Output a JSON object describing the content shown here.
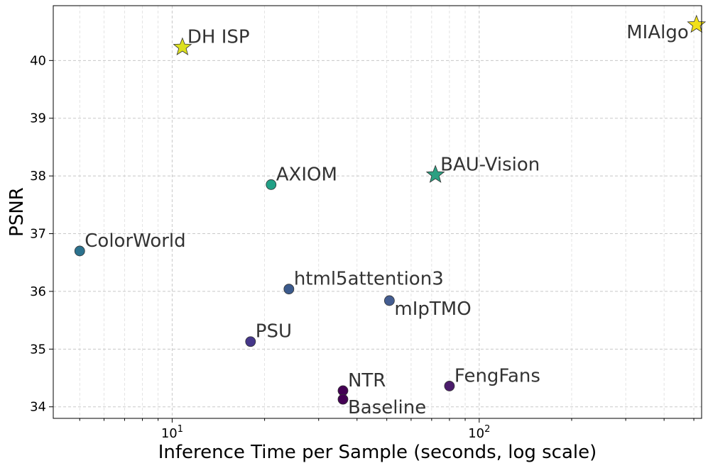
{
  "chart_data": {
    "type": "scatter",
    "xlabel": "Inference Time per Sample (seconds, log scale)",
    "ylabel": "PSNR",
    "x_scale": "log",
    "xlim": [
      4.1,
      530
    ],
    "ylim": [
      33.8,
      40.95
    ],
    "x_ticks": [
      {
        "value": 10,
        "base": "10",
        "exp": "1"
      },
      {
        "value": 100,
        "base": "10",
        "exp": "2"
      }
    ],
    "y_ticks": [
      34,
      35,
      36,
      37,
      38,
      39,
      40
    ],
    "grid": true,
    "colormap": "viridis",
    "points": [
      {
        "name": "MIAlgo",
        "x": 510,
        "y": 40.62,
        "marker": "star",
        "color": "#f2e01b",
        "label_pos": "left"
      },
      {
        "name": "DH ISP",
        "x": 10.8,
        "y": 40.23,
        "marker": "star",
        "color": "#dce01f",
        "label_pos": "right"
      },
      {
        "name": "BAU-Vision",
        "x": 72,
        "y": 38.02,
        "marker": "star",
        "color": "#2ca082",
        "label_pos": "right"
      },
      {
        "name": "AXIOM",
        "x": 21,
        "y": 37.85,
        "marker": "circle",
        "color": "#21a086",
        "label_pos": "right"
      },
      {
        "name": "ColorWorld",
        "x": 5.0,
        "y": 36.7,
        "marker": "circle",
        "color": "#2c728e",
        "label_pos": "right"
      },
      {
        "name": "html5attention3",
        "x": 24,
        "y": 36.04,
        "marker": "circle",
        "color": "#3b5a8c",
        "label_pos": "right"
      },
      {
        "name": "mIpTMO",
        "x": 51,
        "y": 35.84,
        "marker": "circle",
        "color": "#445d91",
        "label_pos": "below-right"
      },
      {
        "name": "PSU",
        "x": 18,
        "y": 35.13,
        "marker": "circle",
        "color": "#45378a",
        "label_pos": "right"
      },
      {
        "name": "NTR",
        "x": 36,
        "y": 34.28,
        "marker": "circle",
        "color": "#440154",
        "label_pos": "right"
      },
      {
        "name": "Baseline",
        "x": 36,
        "y": 34.13,
        "marker": "circle",
        "color": "#440154",
        "label_pos": "below-right"
      },
      {
        "name": "FengFans",
        "x": 80,
        "y": 34.36,
        "marker": "circle",
        "color": "#4b1c6b",
        "label_pos": "right"
      }
    ]
  }
}
